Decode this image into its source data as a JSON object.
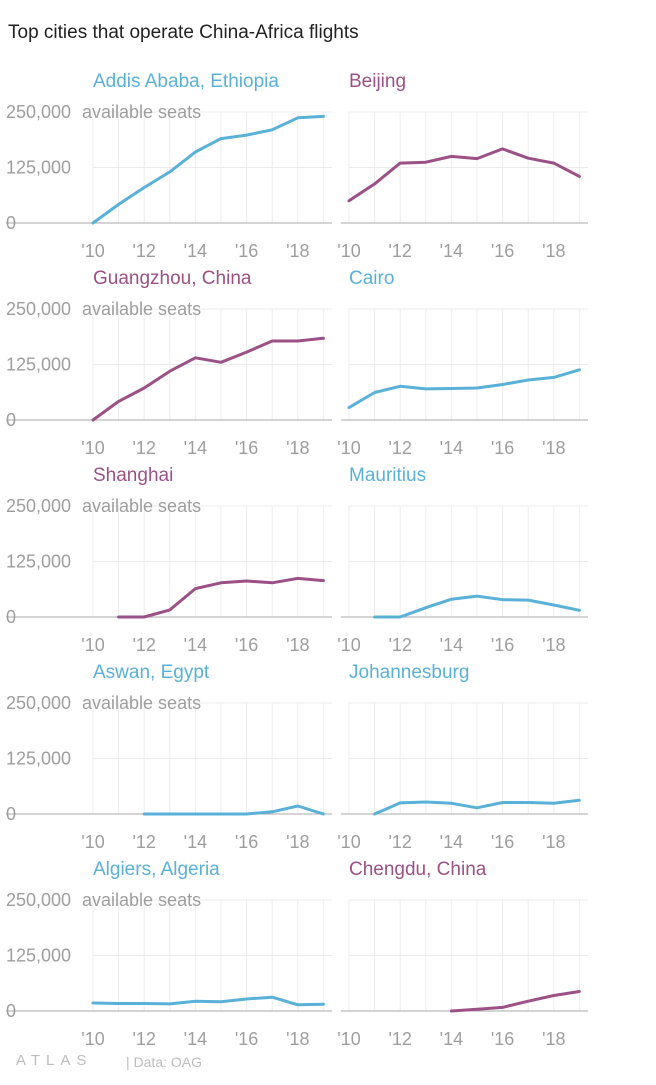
{
  "title": "Top cities that operate China-Africa flights",
  "colors": {
    "blue": "#5ab1d8",
    "purple": "#9c5186"
  },
  "y_ticks": [
    "250,000",
    "125,000",
    "0"
  ],
  "y_unit": "available seats",
  "x_ticks": [
    "'10",
    "'12",
    "'14",
    "'16",
    "'18"
  ],
  "footer": {
    "logo": "ATLAS",
    "source": "| Data: OAG"
  },
  "chart_data": [
    {
      "type": "line",
      "title": "Addis Ababa, Ethiopia",
      "color": "blue",
      "ylim": [
        0,
        250000
      ],
      "xlim": [
        2010,
        2019
      ],
      "series": [
        {
          "x": [
            2010,
            2011,
            2012,
            2013,
            2014,
            2015,
            2016,
            2017,
            2018,
            2019
          ],
          "values": [
            0,
            42000,
            80000,
            115000,
            160000,
            190000,
            198000,
            210000,
            237000,
            240000
          ]
        }
      ]
    },
    {
      "type": "line",
      "title": "Beijing",
      "color": "purple",
      "ylim": [
        0,
        250000
      ],
      "xlim": [
        2010,
        2019
      ],
      "series": [
        {
          "x": [
            2010,
            2011,
            2012,
            2013,
            2014,
            2015,
            2016,
            2017,
            2018,
            2019
          ],
          "values": [
            50000,
            88000,
            135000,
            137000,
            150000,
            145000,
            167000,
            146000,
            135000,
            105000
          ]
        }
      ]
    },
    {
      "type": "line",
      "title": "Guangzhou, China",
      "color": "purple",
      "ylim": [
        0,
        250000
      ],
      "xlim": [
        2010,
        2019
      ],
      "series": [
        {
          "x": [
            2010,
            2011,
            2012,
            2013,
            2014,
            2015,
            2016,
            2017,
            2018,
            2019
          ],
          "values": [
            0,
            42000,
            72000,
            110000,
            140000,
            130000,
            153000,
            178000,
            178000,
            184000
          ]
        }
      ]
    },
    {
      "type": "line",
      "title": "Cairo",
      "color": "blue",
      "ylim": [
        0,
        250000
      ],
      "xlim": [
        2010,
        2019
      ],
      "series": [
        {
          "x": [
            2010,
            2011,
            2012,
            2013,
            2014,
            2015,
            2016,
            2017,
            2018,
            2019
          ],
          "values": [
            28000,
            62000,
            76000,
            70000,
            71000,
            72000,
            80000,
            90000,
            96000,
            113000
          ]
        }
      ]
    },
    {
      "type": "line",
      "title": "Shanghai",
      "color": "purple",
      "ylim": [
        0,
        250000
      ],
      "xlim": [
        2010,
        2019
      ],
      "series": [
        {
          "x": [
            2011,
            2012,
            2013,
            2014,
            2015,
            2016,
            2017,
            2018,
            2019
          ],
          "values": [
            0,
            0,
            16000,
            64000,
            77000,
            81000,
            77000,
            87000,
            82000
          ]
        }
      ]
    },
    {
      "type": "line",
      "title": "Mauritius",
      "color": "blue",
      "ylim": [
        0,
        250000
      ],
      "xlim": [
        2010,
        2019
      ],
      "series": [
        {
          "x": [
            2011,
            2012,
            2013,
            2014,
            2015,
            2016,
            2017,
            2018,
            2019
          ],
          "values": [
            0,
            0,
            21000,
            40000,
            47000,
            39000,
            38000,
            27000,
            15000
          ]
        }
      ]
    },
    {
      "type": "line",
      "title": "Aswan, Egypt",
      "color": "blue",
      "ylim": [
        0,
        250000
      ],
      "xlim": [
        2010,
        2019
      ],
      "series": [
        {
          "x": [
            2012,
            2013,
            2014,
            2015,
            2016,
            2017,
            2018,
            2019
          ],
          "values": [
            0,
            0,
            0,
            0,
            0,
            5000,
            18000,
            0
          ]
        }
      ]
    },
    {
      "type": "line",
      "title": "Johannesburg",
      "color": "blue",
      "ylim": [
        0,
        250000
      ],
      "xlim": [
        2010,
        2019
      ],
      "series": [
        {
          "x": [
            2011,
            2012,
            2013,
            2014,
            2015,
            2016,
            2017,
            2018,
            2019
          ],
          "values": [
            0,
            25000,
            27000,
            24000,
            14000,
            26000,
            26000,
            24000,
            31000
          ]
        }
      ]
    },
    {
      "type": "line",
      "title": "Algiers, Algeria",
      "color": "blue",
      "ylim": [
        0,
        250000
      ],
      "xlim": [
        2010,
        2019
      ],
      "series": [
        {
          "x": [
            2010,
            2011,
            2012,
            2013,
            2014,
            2015,
            2016,
            2017,
            2018,
            2019
          ],
          "values": [
            18000,
            17000,
            17000,
            16000,
            22000,
            21000,
            27000,
            31000,
            14000,
            15000
          ]
        }
      ]
    },
    {
      "type": "line",
      "title": "Chengdu, China",
      "color": "purple",
      "ylim": [
        0,
        250000
      ],
      "xlim": [
        2010,
        2019
      ],
      "series": [
        {
          "x": [
            2014,
            2015,
            2016,
            2017,
            2018,
            2019
          ],
          "values": [
            0,
            4000,
            8000,
            22000,
            35000,
            44000
          ]
        }
      ]
    }
  ]
}
